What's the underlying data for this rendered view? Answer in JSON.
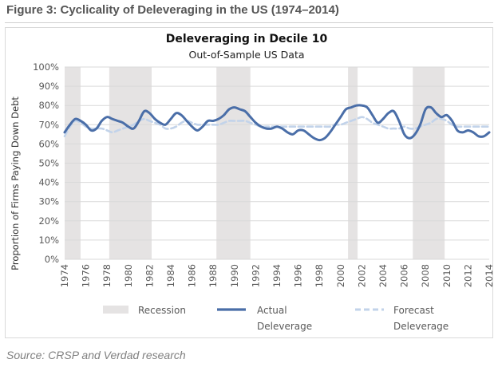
{
  "figure_title": "Figure 3: Cyclicality of Deleveraging in the US (1974–2014)",
  "source_note": "Source: CRSP and Verdad research",
  "chart_data": {
    "type": "line",
    "title": "Deleveraging in Decile 10",
    "subtitle": "Out-of-Sample US Data",
    "xlabel": "",
    "ylabel": "Proportion of Firms Paying Down Debt",
    "xlim": [
      1974,
      2014
    ],
    "ylim": [
      0,
      100
    ],
    "x_ticks": [
      "1974",
      "1976",
      "1978",
      "1980",
      "1982",
      "1984",
      "1986",
      "1988",
      "1990",
      "1992",
      "1994",
      "1996",
      "1998",
      "2000",
      "2002",
      "2004",
      "2006",
      "2008",
      "2010",
      "2012",
      "2014"
    ],
    "y_ticks": [
      "0%",
      "10%",
      "20%",
      "30%",
      "40%",
      "50%",
      "60%",
      "70%",
      "80%",
      "90%",
      "100%"
    ],
    "grid": "horizontal",
    "legend_position": "bottom",
    "recessions": [
      [
        1974,
        1975.5
      ],
      [
        1978.2,
        1982.2
      ],
      [
        1988.3,
        1991.5
      ],
      [
        2000.7,
        2001.6
      ],
      [
        2006.8,
        2009.8
      ]
    ],
    "legend": {
      "recession": "Recession",
      "actual": [
        "Actual",
        "Deleverage"
      ],
      "forecast": [
        "Forecast",
        "Deleverage"
      ]
    },
    "colors": {
      "actual": "#4a6ea8",
      "forecast": "#c2d3ea",
      "recession": "#e5e3e3",
      "grid": "#d9d9d9",
      "text": "#595959"
    },
    "series": [
      {
        "name": "Actual Deleverage",
        "x": [
          1974,
          1974.5,
          1975,
          1975.5,
          1976,
          1976.5,
          1977,
          1977.5,
          1978,
          1978.5,
          1979,
          1979.5,
          1980,
          1980.5,
          1981,
          1981.5,
          1982,
          1982.5,
          1983,
          1983.5,
          1984,
          1984.5,
          1985,
          1985.5,
          1986,
          1986.5,
          1987,
          1987.5,
          1988,
          1988.5,
          1989,
          1989.5,
          1990,
          1990.5,
          1991,
          1991.5,
          1992,
          1992.5,
          1993,
          1993.5,
          1994,
          1994.5,
          1995,
          1995.5,
          1996,
          1996.5,
          1997,
          1997.5,
          1998,
          1998.5,
          1999,
          1999.5,
          2000,
          2000.5,
          2001,
          2001.5,
          2002,
          2002.5,
          2003,
          2003.5,
          2004,
          2004.5,
          2005,
          2005.5,
          2006,
          2006.5,
          2007,
          2007.5,
          2008,
          2008.5,
          2009,
          2009.5,
          2010,
          2010.5,
          2011,
          2011.5,
          2012,
          2012.5,
          2013,
          2013.5,
          2014
        ],
        "values": [
          66,
          70,
          73,
          72,
          70,
          67,
          68,
          72,
          74,
          73,
          72,
          71,
          69,
          68,
          72,
          77,
          76,
          73,
          71,
          70,
          73,
          76,
          75,
          72,
          69,
          67,
          69,
          72,
          72,
          73,
          75,
          78,
          79,
          78,
          77,
          74,
          71,
          69,
          68,
          68,
          69,
          68,
          66,
          65,
          67,
          67,
          65,
          63,
          62,
          63,
          66,
          70,
          74,
          78,
          79,
          80,
          80,
          79,
          75,
          71,
          73,
          76,
          77,
          72,
          65,
          63,
          65,
          70,
          78,
          79,
          76,
          74,
          75,
          72,
          67,
          66,
          67,
          66,
          64,
          64,
          66
        ]
      },
      {
        "name": "Forecast Deleverage",
        "x": [
          1974,
          1974.5,
          1975,
          1975.5,
          1976,
          1976.5,
          1977,
          1977.5,
          1978,
          1978.5,
          1979,
          1979.5,
          1980,
          1980.5,
          1981,
          1981.5,
          1982,
          1982.5,
          1983,
          1983.5,
          1984,
          1984.5,
          1985,
          1985.5,
          1986,
          1986.5,
          1987,
          1987.5,
          1988,
          1988.5,
          1989,
          1989.5,
          1990,
          1990.5,
          1991,
          1991.5,
          1992,
          1992.5,
          1993,
          1993.5,
          1994,
          1994.5,
          1995,
          1995.5,
          1996,
          1996.5,
          1997,
          1997.5,
          1998,
          1998.5,
          1999,
          1999.5,
          2000,
          2000.5,
          2001,
          2001.5,
          2002,
          2002.5,
          2003,
          2003.5,
          2004,
          2004.5,
          2005,
          2005.5,
          2006,
          2006.5,
          2007,
          2007.5,
          2008,
          2008.5,
          2009,
          2009.5,
          2010,
          2010.5,
          2011,
          2011.5,
          2012,
          2012.5,
          2013,
          2013.5,
          2014
        ],
        "values": [
          64,
          69,
          72,
          71,
          69,
          68,
          68,
          68,
          67,
          66,
          67,
          68,
          69,
          70,
          72,
          73,
          72,
          71,
          70,
          68,
          68,
          69,
          71,
          72,
          71,
          70,
          70,
          70,
          70,
          70,
          71,
          72,
          72,
          72,
          72,
          71,
          70,
          69,
          69,
          69,
          69,
          69,
          69,
          69,
          69,
          69,
          69,
          69,
          69,
          69,
          69,
          70,
          70,
          71,
          72,
          73,
          74,
          73,
          71,
          70,
          69,
          68,
          68,
          68,
          69,
          68,
          68,
          69,
          70,
          71,
          73,
          73,
          72,
          70,
          69,
          69,
          69,
          69,
          69,
          69,
          69
        ]
      }
    ]
  }
}
